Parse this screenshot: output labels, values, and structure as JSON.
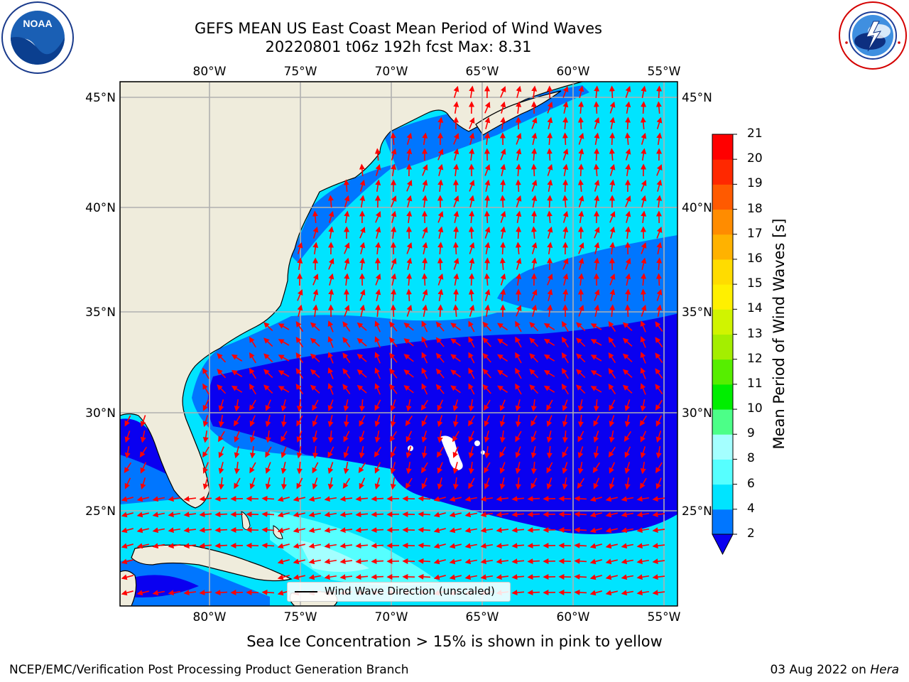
{
  "title": {
    "line1": "GEFS MEAN US East Coast Mean Period of Wind Waves",
    "line2": "20220801 t06z 192h fcst   Max: 8.31"
  },
  "logos": {
    "left": {
      "name": "noaa-logo",
      "text": "NOAA",
      "ring_text": "NATIONAL OCEANIC AND ATMOSPHERIC ADMINISTRATION · U.S. DEPARTMENT OF COMMERCE"
    },
    "right": {
      "name": "nws-logo",
      "ring_text": "NATIONAL WEATHER SERVICE"
    }
  },
  "map": {
    "projection_extent": {
      "lon": [
        -85,
        -54.3
      ],
      "lat": [
        20.5,
        45.8
      ]
    },
    "longitude_ticks": [
      "80°W",
      "75°W",
      "70°W",
      "65°W",
      "60°W",
      "55°W"
    ],
    "latitude_ticks": [
      "45°N",
      "40°N",
      "35°N",
      "30°N",
      "25°N"
    ],
    "grid": true,
    "land_color": "#efecdc",
    "arrow_color": "#ff0000",
    "legend": {
      "label": "Wind Wave Direction (unscaled)",
      "location": "lower center"
    }
  },
  "colorbar": {
    "label": "Mean Period of Wind Waves [s]",
    "ticks": [
      "2",
      "4",
      "6",
      "8",
      "9",
      "10",
      "11",
      "12",
      "13",
      "14",
      "15",
      "16",
      "17",
      "18",
      "19",
      "20",
      "21"
    ],
    "colors": [
      "#0a00f0",
      "#0076ff",
      "#00e4ff",
      "#56ffff",
      "#a4ffff",
      "#4cff88",
      "#00ee00",
      "#56ee00",
      "#a4ee00",
      "#d0f400",
      "#fff000",
      "#ffdc00",
      "#ffb200",
      "#ff8c00",
      "#ff5a00",
      "#ff2800",
      "#ff0000"
    ]
  },
  "footnote": "Sea Ice Concentration > 15% is shown in pink to yellow",
  "credit_left": "NCEP/EMC/Verification Post Processing Product Generation Branch",
  "credit_right_prefix": "03 Aug 2022 on ",
  "credit_right_host": "Hera"
}
